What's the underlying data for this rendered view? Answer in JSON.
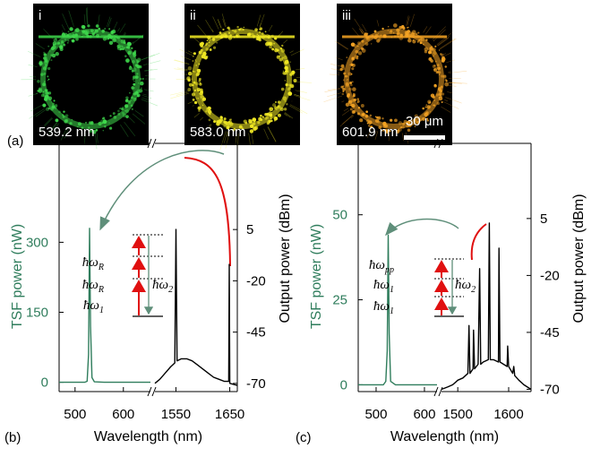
{
  "panel_a": {
    "label": "(a)",
    "scale_bar": "30 μm",
    "images": [
      {
        "index": "i",
        "wavelength": "539.2 nm",
        "color": "#3fd84c"
      },
      {
        "index": "ii",
        "wavelength": "583.0 nm",
        "color": "#f2ea24"
      },
      {
        "index": "iii",
        "wavelength": "601.9 nm",
        "color": "#f5a424"
      }
    ]
  },
  "chart_data": [
    {
      "type": "line",
      "panel_label": "(b)",
      "xlabel": "Wavelength (nm)",
      "ylabel": "TSF power (nW)",
      "y2label": "Output power (dBm)",
      "ylim": [
        -20,
        512
      ],
      "yticks": [
        0,
        150,
        300
      ],
      "y2lim": [
        -74,
        47
      ],
      "y2ticks": [
        5,
        -20,
        -45,
        -70
      ],
      "x_segments": [
        {
          "xlim": [
            467,
            656
          ],
          "xticks": [
            500,
            600
          ]
        },
        {
          "xlim": [
            1511,
            1664
          ],
          "xticks": [
            1550,
            1650
          ]
        }
      ],
      "series": [
        {
          "color": "#2f7d5c",
          "segment": 0,
          "x": [
            467,
            500,
            520,
            525,
            528,
            530,
            532,
            535,
            540,
            560,
            600,
            656
          ],
          "values": [
            0,
            0,
            0,
            2,
            60,
            330,
            120,
            10,
            1,
            0,
            0,
            0
          ]
        },
        {
          "color": "#000000",
          "segment": 1,
          "axis": "y2",
          "x": [
            1511,
            1520,
            1530,
            1540,
            1548,
            1550,
            1552,
            1560,
            1570,
            1580,
            1590,
            1600,
            1610,
            1620,
            1630,
            1640,
            1648,
            1649,
            1650,
            1664
          ],
          "values": [
            -70,
            -68,
            -65,
            -62,
            -60,
            5,
            -59,
            -58,
            -58,
            -59,
            -61,
            -63,
            -65,
            -67,
            -68,
            -69,
            -69,
            -12,
            -70,
            -71
          ]
        }
      ],
      "energy_labels": [
        {
          "text": "ħω",
          "sub": "R"
        },
        {
          "text": "ħω",
          "sub": "R"
        },
        {
          "text": "ħω",
          "sub": "1"
        },
        {
          "text": "ħω",
          "sub": "2"
        }
      ]
    },
    {
      "type": "line",
      "panel_label": "(c)",
      "xlabel": "Wavelength (nm)",
      "ylabel": "TSF power (nW)",
      "y2label": "Output power (dBm)",
      "ylim": [
        -2,
        71
      ],
      "yticks": [
        0,
        25,
        50
      ],
      "y2lim": [
        -71,
        38
      ],
      "y2ticks": [
        5,
        -20,
        -45,
        -70
      ],
      "x_segments": [
        {
          "xlim": [
            463,
            626
          ],
          "xticks": [
            500,
            600
          ]
        },
        {
          "xlim": [
            1468,
            1644
          ],
          "xticks": [
            1500,
            1600
          ]
        }
      ],
      "series": [
        {
          "color": "#2f7d5c",
          "segment": 0,
          "x": [
            463,
            500,
            515,
            520,
            523,
            525,
            527,
            530,
            540,
            580,
            626
          ],
          "values": [
            0,
            0,
            0,
            1,
            10,
            44,
            15,
            1,
            0,
            0,
            0
          ]
        },
        {
          "color": "#000000",
          "segment": 1,
          "axis": "y2",
          "x": [
            1468,
            1480,
            1490,
            1500,
            1510,
            1520,
            1522,
            1524,
            1530,
            1531,
            1533,
            1540,
            1543,
            1545,
            1550,
            1560,
            1562,
            1564,
            1570,
            1580,
            1581,
            1583,
            1590,
            1597,
            1598,
            1600,
            1608,
            1610,
            1612,
            1620,
            1630,
            1644
          ],
          "values": [
            -70,
            -69,
            -68,
            -66,
            -65,
            -63,
            -42,
            -63,
            -61,
            -44,
            -61,
            -59,
            -17,
            -59,
            -58,
            -57,
            3,
            -57,
            -57,
            -58,
            -8,
            -58,
            -59,
            -60,
            -51,
            -60,
            -63,
            -60,
            -64,
            -66,
            -68,
            -70
          ]
        }
      ],
      "energy_labels": [
        {
          "text": "ħω",
          "sub": "pp"
        },
        {
          "text": "ħω",
          "sub": "1"
        },
        {
          "text": "ħω",
          "sub": "1"
        },
        {
          "text": "ħω",
          "sub": "2"
        }
      ]
    }
  ]
}
